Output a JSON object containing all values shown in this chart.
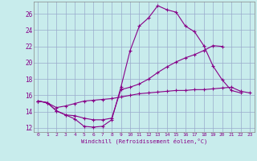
{
  "xlabel": "Windchill (Refroidissement éolien,°C)",
  "bg_color": "#c8ecec",
  "line_color": "#880088",
  "grid_color": "#99aacc",
  "xlim": [
    -0.5,
    23.5
  ],
  "ylim": [
    11.5,
    27.5
  ],
  "xticks": [
    0,
    1,
    2,
    3,
    4,
    5,
    6,
    7,
    8,
    9,
    10,
    11,
    12,
    13,
    14,
    15,
    16,
    17,
    18,
    19,
    20,
    21,
    22,
    23
  ],
  "yticks": [
    12,
    14,
    16,
    18,
    20,
    22,
    24,
    26
  ],
  "series": [
    [
      15.3,
      15.1,
      14.1,
      13.6,
      13.1,
      12.2,
      12.1,
      12.2,
      13.0,
      17.0,
      21.5,
      24.5,
      25.5,
      27.0,
      26.5,
      26.2,
      24.5,
      23.8,
      22.1,
      19.6,
      17.9,
      16.6,
      16.3,
      null
    ],
    [
      15.3,
      15.1,
      14.1,
      13.6,
      13.5,
      13.2,
      13.0,
      13.0,
      13.2,
      16.7,
      17.0,
      17.4,
      18.0,
      18.8,
      19.5,
      20.1,
      20.6,
      21.0,
      21.5,
      22.1,
      22.0,
      null,
      null,
      null
    ],
    [
      15.3,
      15.1,
      14.5,
      14.7,
      15.0,
      15.3,
      15.4,
      15.5,
      15.6,
      15.8,
      16.0,
      16.2,
      16.3,
      16.4,
      16.5,
      16.6,
      16.6,
      16.7,
      16.7,
      16.8,
      16.9,
      17.0,
      16.5,
      16.3
    ]
  ]
}
